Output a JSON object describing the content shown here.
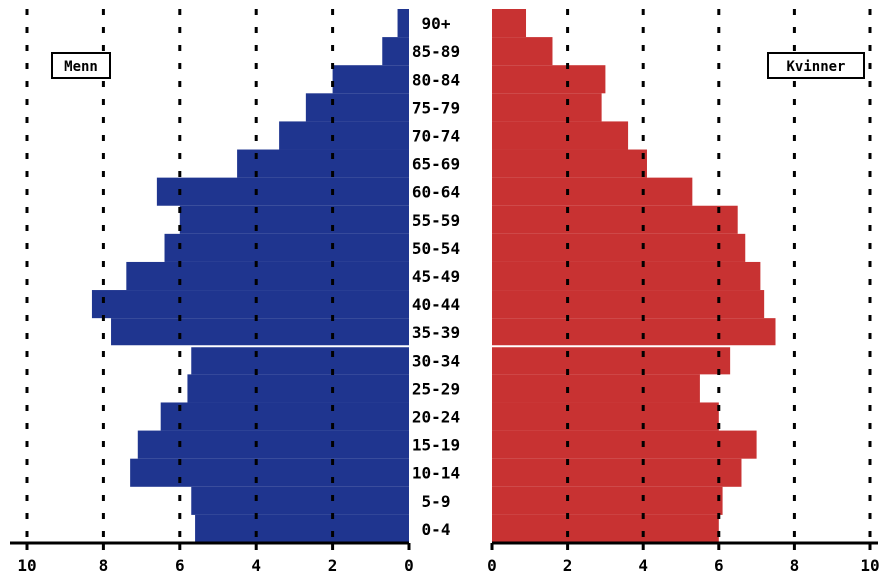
{
  "chart_data": {
    "type": "bar",
    "orientation": "horizontal",
    "categories": [
      "0-4",
      "5-9",
      "10-14",
      "15-19",
      "20-24",
      "25-29",
      "30-34",
      "35-39",
      "40-44",
      "45-49",
      "50-54",
      "55-59",
      "60-64",
      "65-69",
      "70-74",
      "75-79",
      "80-84",
      "85-89",
      "90+"
    ],
    "series": [
      {
        "name": "Menn",
        "color": "#1f358f",
        "values": [
          5.6,
          5.7,
          7.3,
          7.1,
          6.5,
          5.8,
          5.7,
          7.8,
          8.3,
          7.4,
          6.4,
          6.0,
          6.6,
          4.5,
          3.4,
          2.7,
          2.0,
          0.7,
          0.3
        ]
      },
      {
        "name": "Kvinner",
        "color": "#c83232",
        "values": [
          6.0,
          6.1,
          6.6,
          7.0,
          6.0,
          5.5,
          6.3,
          7.5,
          7.2,
          7.1,
          6.7,
          6.5,
          5.3,
          4.1,
          3.6,
          2.9,
          3.0,
          1.6,
          0.9
        ]
      }
    ],
    "x_ticks": [
      "10",
      "8",
      "6",
      "4",
      "2",
      "0"
    ],
    "x_ticks_right": [
      "0",
      "2",
      "4",
      "6",
      "8",
      "10"
    ],
    "xlim": [
      0,
      10
    ],
    "grid": true,
    "legend": {
      "left_label": "Menn",
      "right_label": "Kvinner",
      "placement": "top"
    }
  }
}
